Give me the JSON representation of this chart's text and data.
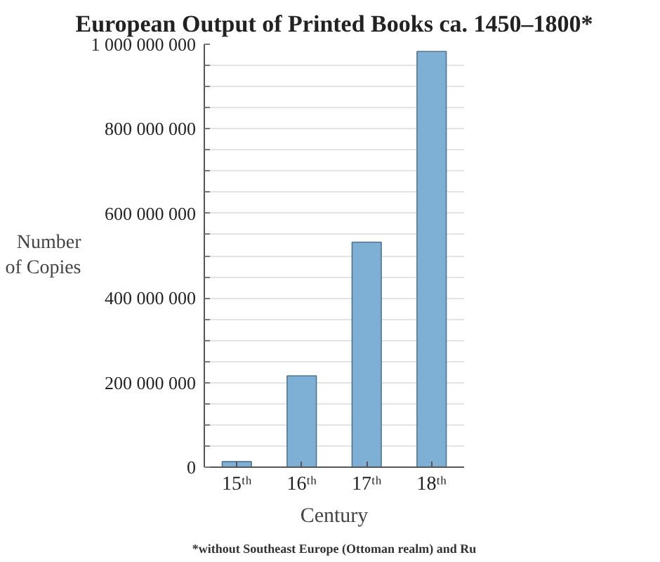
{
  "chart_data": {
    "type": "bar",
    "title": "European Output of Printed Books ca. 1450–1800*",
    "xlabel": "Century",
    "ylabel": "Number of Copies",
    "categories": [
      "15ᵗʰ",
      "16ᵗʰ",
      "17ᵗʰ",
      "18ᵗʰ"
    ],
    "values": [
      13000000,
      216000000,
      532000000,
      983000000
    ],
    "color": "#7eb0d6",
    "ylim": [
      0,
      1000000000
    ],
    "yticks": [
      {
        "value": 0,
        "label": "0"
      },
      {
        "value": 50000000,
        "label": null
      },
      {
        "value": 100000000,
        "label": null
      },
      {
        "value": 150000000,
        "label": null
      },
      {
        "value": 200000000,
        "label": "200 000 000"
      },
      {
        "value": 250000000,
        "label": null
      },
      {
        "value": 300000000,
        "label": null
      },
      {
        "value": 350000000,
        "label": null
      },
      {
        "value": 400000000,
        "label": "400 000 000"
      },
      {
        "value": 450000000,
        "label": null
      },
      {
        "value": 500000000,
        "label": null
      },
      {
        "value": 550000000,
        "label": null
      },
      {
        "value": 600000000,
        "label": "600 000 000"
      },
      {
        "value": 650000000,
        "label": null
      },
      {
        "value": 700000000,
        "label": null
      },
      {
        "value": 750000000,
        "label": null
      },
      {
        "value": 800000000,
        "label": "800 000 000"
      },
      {
        "value": 850000000,
        "label": null
      },
      {
        "value": 900000000,
        "label": null
      },
      {
        "value": 950000000,
        "label": null
      },
      {
        "value": 1000000000,
        "label": "1 000 000 000"
      }
    ],
    "grid": "y",
    "annotations": [
      "*without Southeast Europe (Ottoman realm) and Ru"
    ]
  }
}
